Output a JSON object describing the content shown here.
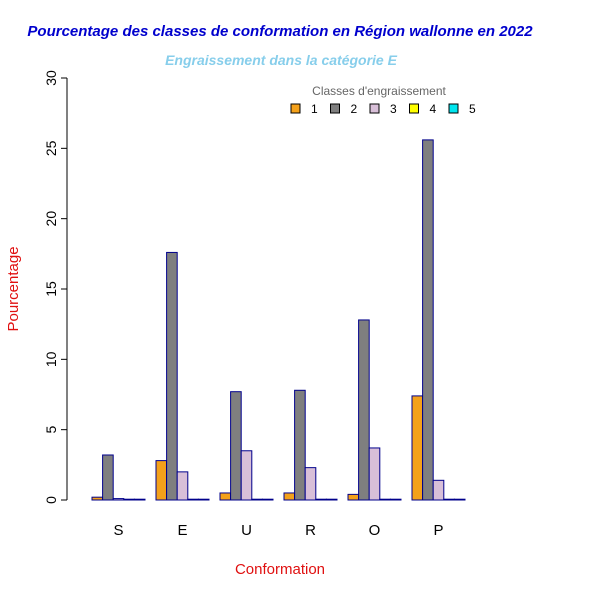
{
  "chart_data": {
    "type": "bar",
    "title": "Pourcentage des classes de conformation en Région wallonne en 2022",
    "subtitle": "Engraissement dans la catégorie E",
    "xlabel": "Conformation",
    "ylabel": "Pourcentage",
    "ylim": [
      0,
      30
    ],
    "yticks": [
      "0",
      "5",
      "10",
      "15",
      "20",
      "25",
      "30"
    ],
    "categories": [
      "S",
      "E",
      "U",
      "R",
      "O",
      "P"
    ],
    "legend": {
      "title": "Classes d'engraissement",
      "position": "top-right"
    },
    "grid": false,
    "series": [
      {
        "name": "1",
        "color": "#f4a11a",
        "values": [
          0.2,
          2.8,
          0.5,
          0.5,
          0.4,
          7.4
        ]
      },
      {
        "name": "2",
        "color": "#7f7f7f",
        "values": [
          3.2,
          17.6,
          7.7,
          7.8,
          12.8,
          25.6
        ]
      },
      {
        "name": "3",
        "color": "#d8bfd8",
        "values": [
          0.1,
          2.0,
          3.5,
          2.3,
          3.7,
          1.4
        ]
      },
      {
        "name": "4",
        "color": "#ffff00",
        "values": [
          0.0,
          0.0,
          0.05,
          0.05,
          0.0,
          0.05
        ]
      },
      {
        "name": "5",
        "color": "#00e5ee",
        "values": [
          0.0,
          0.0,
          0.0,
          0.0,
          0.0,
          0.0
        ]
      }
    ],
    "colors": {
      "title": "#0000cd",
      "subtitle": "#87ceeb",
      "axis_label": "#e01010",
      "bar_border": "#00008b",
      "legend_title": "#666666"
    }
  }
}
